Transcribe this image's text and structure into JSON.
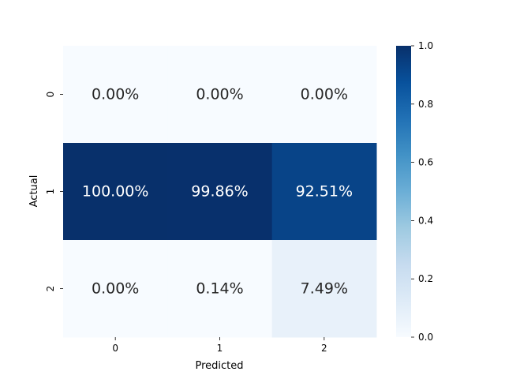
{
  "chart_data": {
    "type": "heatmap",
    "xlabel": "Predicted",
    "ylabel": "Actual",
    "x_categories": [
      "0",
      "1",
      "2"
    ],
    "y_categories": [
      "0",
      "1",
      "2"
    ],
    "values": [
      [
        0.0,
        0.0,
        0.0
      ],
      [
        1.0,
        0.9986,
        0.9251
      ],
      [
        0.0,
        0.0014,
        0.0749
      ]
    ],
    "cell_labels": [
      [
        "0.00%",
        "0.00%",
        "0.00%"
      ],
      [
        "100.00%",
        "99.86%",
        "92.51%"
      ],
      [
        "0.00%",
        "0.14%",
        "7.49%"
      ]
    ],
    "colormap": "Blues",
    "colorbar": {
      "range": [
        0.0,
        1.0
      ],
      "ticks": [
        0.0,
        0.2,
        0.4,
        0.6,
        0.8,
        1.0
      ],
      "tick_labels": [
        "0.0",
        "0.2",
        "0.4",
        "0.6",
        "0.8",
        "1.0"
      ]
    }
  }
}
